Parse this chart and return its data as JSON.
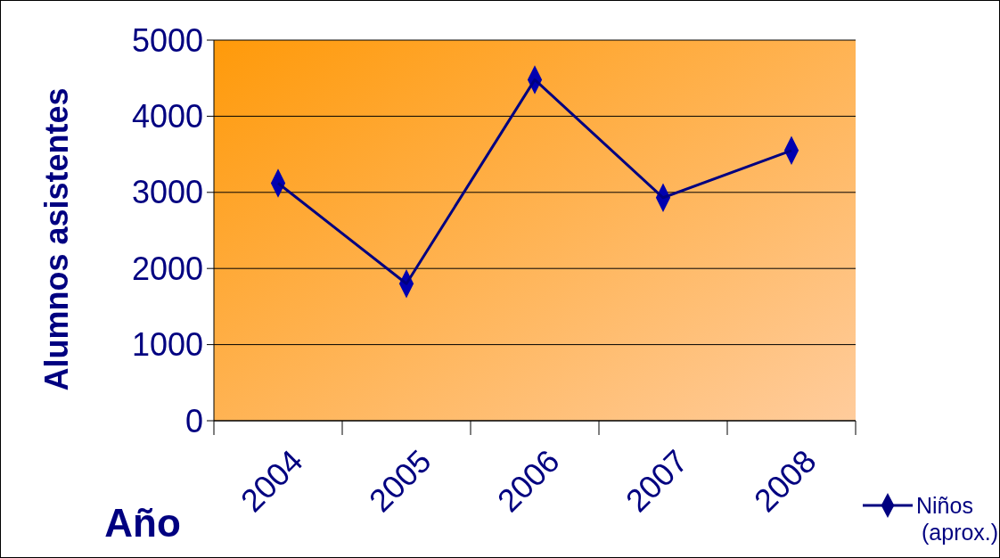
{
  "chart_data": {
    "type": "line",
    "xlabel": "Año",
    "ylabel": "Alumnos asistentes",
    "categories": [
      "2004",
      "2005",
      "2006",
      "2007",
      "2008"
    ],
    "series": [
      {
        "name": "Niños (aprox.)",
        "color": "#000080",
        "values": [
          3120,
          1800,
          4480,
          2930,
          3550
        ]
      }
    ],
    "ylim": [
      0,
      5000
    ],
    "yticks": [
      0,
      1000,
      2000,
      3000,
      4000,
      5000
    ],
    "grid": "y",
    "legend": "bottom right",
    "marker": "diamond",
    "line_style": "solid"
  }
}
